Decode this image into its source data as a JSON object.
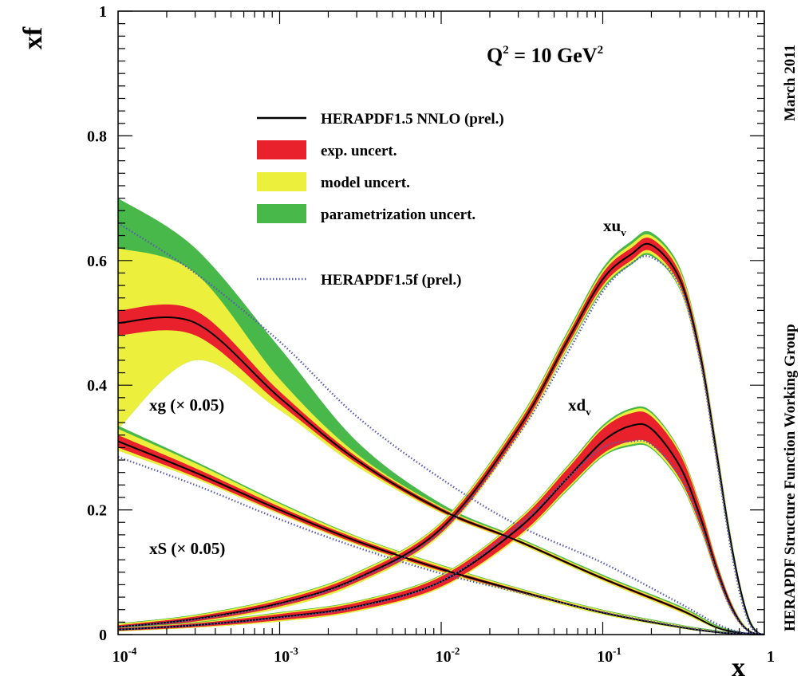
{
  "chart_data": {
    "type": "line",
    "xlabel": "x",
    "ylabel": "xf",
    "xscale": "log",
    "xlim": [
      0.0001,
      1
    ],
    "ylim": [
      0,
      1
    ],
    "grid": false,
    "legend_position": "top-center",
    "x_ticks": [
      {
        "value": 0.0001,
        "base": "10",
        "exp": "-4"
      },
      {
        "value": 0.001,
        "base": "10",
        "exp": "-3"
      },
      {
        "value": 0.01,
        "base": "10",
        "exp": "-2"
      },
      {
        "value": 0.1,
        "base": "10",
        "exp": "-1"
      },
      {
        "value": 1,
        "base": "1",
        "exp": ""
      }
    ],
    "y_ticks": [
      {
        "value": 0,
        "label": "0"
      },
      {
        "value": 0.2,
        "label": "0.2"
      },
      {
        "value": 0.4,
        "label": "0.4"
      },
      {
        "value": 0.6,
        "label": "0.6"
      },
      {
        "value": 0.8,
        "label": "0.8"
      },
      {
        "value": 1,
        "label": "1"
      }
    ],
    "annotation_q2": {
      "prefix": "Q",
      "sup1": "2",
      "mid": " = 10 GeV",
      "sup2": "2"
    },
    "side_text_top": "March 2011",
    "side_text_bottom": "HERAPDF Structure Function Working Group",
    "legend": [
      {
        "kind": "line",
        "label": "HERAPDF1.5 NNLO (prel.)",
        "color": "#000000"
      },
      {
        "kind": "box",
        "label": "exp. uncert.",
        "color": "#e8212c"
      },
      {
        "kind": "box",
        "label": "model uncert.",
        "color": "#ecf03c"
      },
      {
        "kind": "box",
        "label": "parametrization uncert.",
        "color": "#48b84a"
      },
      {
        "kind": "dotted",
        "label": "HERAPDF1.5f (prel.)",
        "color": "#5a5ab4"
      }
    ],
    "series": [
      {
        "name": "xg (× 0.05)",
        "x": [
          0.0001,
          0.0003,
          0.001,
          0.003,
          0.01,
          0.03,
          0.1,
          0.3,
          0.5,
          0.7,
          1.0
        ],
        "central": [
          0.5,
          0.5,
          0.38,
          0.28,
          0.2,
          0.15,
          0.09,
          0.04,
          0.012,
          0.003,
          0.0
        ],
        "exp": [
          [
            0.48,
            0.52
          ],
          [
            0.48,
            0.52
          ],
          [
            0.37,
            0.39
          ],
          [
            0.275,
            0.285
          ],
          [
            0.197,
            0.203
          ],
          [
            0.148,
            0.152
          ],
          [
            0.088,
            0.092
          ],
          [
            0.038,
            0.042
          ],
          [
            0.011,
            0.013
          ],
          [
            0.002,
            0.004
          ],
          [
            0.0,
            0.0
          ]
        ],
        "model": [
          [
            0.33,
            0.62
          ],
          [
            0.44,
            0.58
          ],
          [
            0.36,
            0.41
          ],
          [
            0.27,
            0.29
          ],
          [
            0.195,
            0.205
          ],
          [
            0.146,
            0.154
          ],
          [
            0.086,
            0.094
          ],
          [
            0.036,
            0.044
          ],
          [
            0.01,
            0.014
          ],
          [
            0.002,
            0.004
          ],
          [
            0.0,
            0.0
          ]
        ],
        "param": [
          [
            0.33,
            0.7
          ],
          [
            0.44,
            0.62
          ],
          [
            0.36,
            0.46
          ],
          [
            0.27,
            0.31
          ],
          [
            0.195,
            0.21
          ],
          [
            0.146,
            0.156
          ],
          [
            0.086,
            0.096
          ],
          [
            0.036,
            0.046
          ],
          [
            0.01,
            0.016
          ],
          [
            0.002,
            0.005
          ],
          [
            0.0,
            0.0
          ]
        ],
        "alt": [
          0.66,
          0.58,
          0.47,
          0.35,
          0.25,
          0.175,
          0.115,
          0.05,
          0.018,
          0.004,
          0.0
        ]
      },
      {
        "name": "xS (× 0.05)",
        "x": [
          0.0001,
          0.0003,
          0.001,
          0.003,
          0.01,
          0.03,
          0.1,
          0.3,
          0.5,
          0.7,
          1.0
        ],
        "central": [
          0.31,
          0.26,
          0.2,
          0.15,
          0.105,
          0.07,
          0.035,
          0.012,
          0.004,
          0.001,
          0.0
        ],
        "exp": [
          [
            0.3,
            0.32
          ],
          [
            0.253,
            0.267
          ],
          [
            0.195,
            0.205
          ],
          [
            0.146,
            0.154
          ],
          [
            0.102,
            0.108
          ],
          [
            0.068,
            0.072
          ],
          [
            0.034,
            0.037
          ],
          [
            0.011,
            0.013
          ],
          [
            0.003,
            0.005
          ],
          [
            0.0,
            0.002
          ],
          [
            0.0,
            0.0
          ]
        ],
        "model": [
          [
            0.295,
            0.33
          ],
          [
            0.25,
            0.275
          ],
          [
            0.193,
            0.21
          ],
          [
            0.144,
            0.157
          ],
          [
            0.1,
            0.111
          ],
          [
            0.066,
            0.074
          ],
          [
            0.032,
            0.039
          ],
          [
            0.01,
            0.015
          ],
          [
            0.003,
            0.006
          ],
          [
            0.0,
            0.002
          ],
          [
            0.0,
            0.0
          ]
        ],
        "param": [
          [
            0.295,
            0.335
          ],
          [
            0.25,
            0.278
          ],
          [
            0.193,
            0.212
          ],
          [
            0.144,
            0.158
          ],
          [
            0.1,
            0.112
          ],
          [
            0.066,
            0.075
          ],
          [
            0.032,
            0.04
          ],
          [
            0.01,
            0.016
          ],
          [
            0.003,
            0.007
          ],
          [
            0.0,
            0.002
          ],
          [
            0.0,
            0.0
          ]
        ],
        "alt": [
          0.285,
          0.24,
          0.185,
          0.14,
          0.098,
          0.068,
          0.036,
          0.013,
          0.005,
          0.001,
          0.0
        ]
      },
      {
        "name": "xu_v",
        "x": [
          0.0001,
          0.0003,
          0.001,
          0.003,
          0.01,
          0.03,
          0.06,
          0.1,
          0.15,
          0.2,
          0.3,
          0.4,
          0.5,
          0.6,
          0.7,
          0.8,
          0.9,
          1.0
        ],
        "central": [
          0.012,
          0.025,
          0.05,
          0.09,
          0.17,
          0.33,
          0.47,
          0.57,
          0.61,
          0.625,
          0.57,
          0.45,
          0.3,
          0.17,
          0.08,
          0.025,
          0.004,
          0.0
        ],
        "exp": [
          [
            0.009,
            0.015
          ],
          [
            0.021,
            0.029
          ],
          [
            0.045,
            0.055
          ],
          [
            0.084,
            0.096
          ],
          [
            0.163,
            0.177
          ],
          [
            0.322,
            0.338
          ],
          [
            0.462,
            0.478
          ],
          [
            0.56,
            0.58
          ],
          [
            0.6,
            0.62
          ],
          [
            0.615,
            0.635
          ],
          [
            0.56,
            0.58
          ],
          [
            0.44,
            0.46
          ],
          [
            0.29,
            0.31
          ],
          [
            0.163,
            0.177
          ],
          [
            0.075,
            0.085
          ],
          [
            0.022,
            0.028
          ],
          [
            0.003,
            0.005
          ],
          [
            0.0,
            0.0
          ]
        ],
        "model": [
          [
            0.007,
            0.017
          ],
          [
            0.019,
            0.031
          ],
          [
            0.042,
            0.058
          ],
          [
            0.081,
            0.099
          ],
          [
            0.16,
            0.18
          ],
          [
            0.318,
            0.342
          ],
          [
            0.458,
            0.482
          ],
          [
            0.556,
            0.584
          ],
          [
            0.596,
            0.626
          ],
          [
            0.61,
            0.64
          ],
          [
            0.555,
            0.585
          ],
          [
            0.436,
            0.464
          ],
          [
            0.287,
            0.313
          ],
          [
            0.16,
            0.18
          ],
          [
            0.073,
            0.087
          ],
          [
            0.021,
            0.029
          ],
          [
            0.003,
            0.005
          ],
          [
            0.0,
            0.0
          ]
        ],
        "param": [
          [
            0.007,
            0.018
          ],
          [
            0.019,
            0.032
          ],
          [
            0.042,
            0.059
          ],
          [
            0.081,
            0.1
          ],
          [
            0.16,
            0.181
          ],
          [
            0.318,
            0.344
          ],
          [
            0.456,
            0.485
          ],
          [
            0.553,
            0.588
          ],
          [
            0.593,
            0.631
          ],
          [
            0.607,
            0.645
          ],
          [
            0.553,
            0.589
          ],
          [
            0.434,
            0.467
          ],
          [
            0.285,
            0.316
          ],
          [
            0.158,
            0.182
          ],
          [
            0.072,
            0.088
          ],
          [
            0.02,
            0.03
          ],
          [
            0.003,
            0.006
          ],
          [
            0.0,
            0.0
          ]
        ],
        "alt": [
          0.012,
          0.024,
          0.048,
          0.088,
          0.165,
          0.32,
          0.45,
          0.55,
          0.595,
          0.605,
          0.56,
          0.44,
          0.29,
          0.16,
          0.07,
          0.02,
          0.003,
          0.0
        ]
      },
      {
        "name": "xd_v",
        "x": [
          0.0001,
          0.0003,
          0.001,
          0.003,
          0.01,
          0.03,
          0.06,
          0.1,
          0.15,
          0.2,
          0.3,
          0.4,
          0.5,
          0.6,
          0.7,
          0.8,
          0.9,
          1.0
        ],
        "central": [
          0.008,
          0.015,
          0.028,
          0.045,
          0.085,
          0.17,
          0.25,
          0.31,
          0.335,
          0.33,
          0.27,
          0.19,
          0.11,
          0.055,
          0.022,
          0.006,
          0.001,
          0.0
        ],
        "exp": [
          [
            0.006,
            0.01
          ],
          [
            0.012,
            0.018
          ],
          [
            0.023,
            0.033
          ],
          [
            0.039,
            0.051
          ],
          [
            0.077,
            0.093
          ],
          [
            0.158,
            0.182
          ],
          [
            0.235,
            0.265
          ],
          [
            0.29,
            0.33
          ],
          [
            0.31,
            0.355
          ],
          [
            0.305,
            0.35
          ],
          [
            0.25,
            0.29
          ],
          [
            0.175,
            0.205
          ],
          [
            0.1,
            0.12
          ],
          [
            0.049,
            0.061
          ],
          [
            0.019,
            0.025
          ],
          [
            0.005,
            0.007
          ],
          [
            0.001,
            0.002
          ],
          [
            0.0,
            0.0
          ]
        ],
        "model": [
          [
            0.005,
            0.011
          ],
          [
            0.011,
            0.019
          ],
          [
            0.021,
            0.035
          ],
          [
            0.037,
            0.053
          ],
          [
            0.075,
            0.095
          ],
          [
            0.155,
            0.185
          ],
          [
            0.232,
            0.268
          ],
          [
            0.287,
            0.333
          ],
          [
            0.305,
            0.36
          ],
          [
            0.3,
            0.355
          ],
          [
            0.246,
            0.294
          ],
          [
            0.172,
            0.208
          ],
          [
            0.098,
            0.122
          ],
          [
            0.048,
            0.062
          ],
          [
            0.018,
            0.026
          ],
          [
            0.005,
            0.008
          ],
          [
            0.001,
            0.002
          ],
          [
            0.0,
            0.0
          ]
        ],
        "param": [
          [
            0.005,
            0.012
          ],
          [
            0.011,
            0.02
          ],
          [
            0.021,
            0.036
          ],
          [
            0.037,
            0.054
          ],
          [
            0.075,
            0.096
          ],
          [
            0.155,
            0.186
          ],
          [
            0.23,
            0.27
          ],
          [
            0.285,
            0.336
          ],
          [
            0.302,
            0.363
          ],
          [
            0.298,
            0.358
          ],
          [
            0.244,
            0.296
          ],
          [
            0.17,
            0.21
          ],
          [
            0.097,
            0.123
          ],
          [
            0.047,
            0.063
          ],
          [
            0.018,
            0.027
          ],
          [
            0.005,
            0.008
          ],
          [
            0.001,
            0.002
          ],
          [
            0.0,
            0.0
          ]
        ],
        "alt": [
          0.008,
          0.015,
          0.027,
          0.044,
          0.085,
          0.175,
          0.25,
          0.3,
          0.31,
          0.305,
          0.255,
          0.18,
          0.105,
          0.05,
          0.02,
          0.005,
          0.001,
          0.0
        ]
      }
    ],
    "labels": {
      "xg": "xg (× 0.05)",
      "xs": "xS (× 0.05)",
      "xuv_main": "xu",
      "xuv_sub": "v",
      "xdv_main": "xd",
      "xdv_sub": "v"
    },
    "colors": {
      "exp": "#e8212c",
      "model": "#ecf03c",
      "param": "#48b84a",
      "central": "#000000",
      "alt": "#5a5ab4"
    }
  }
}
